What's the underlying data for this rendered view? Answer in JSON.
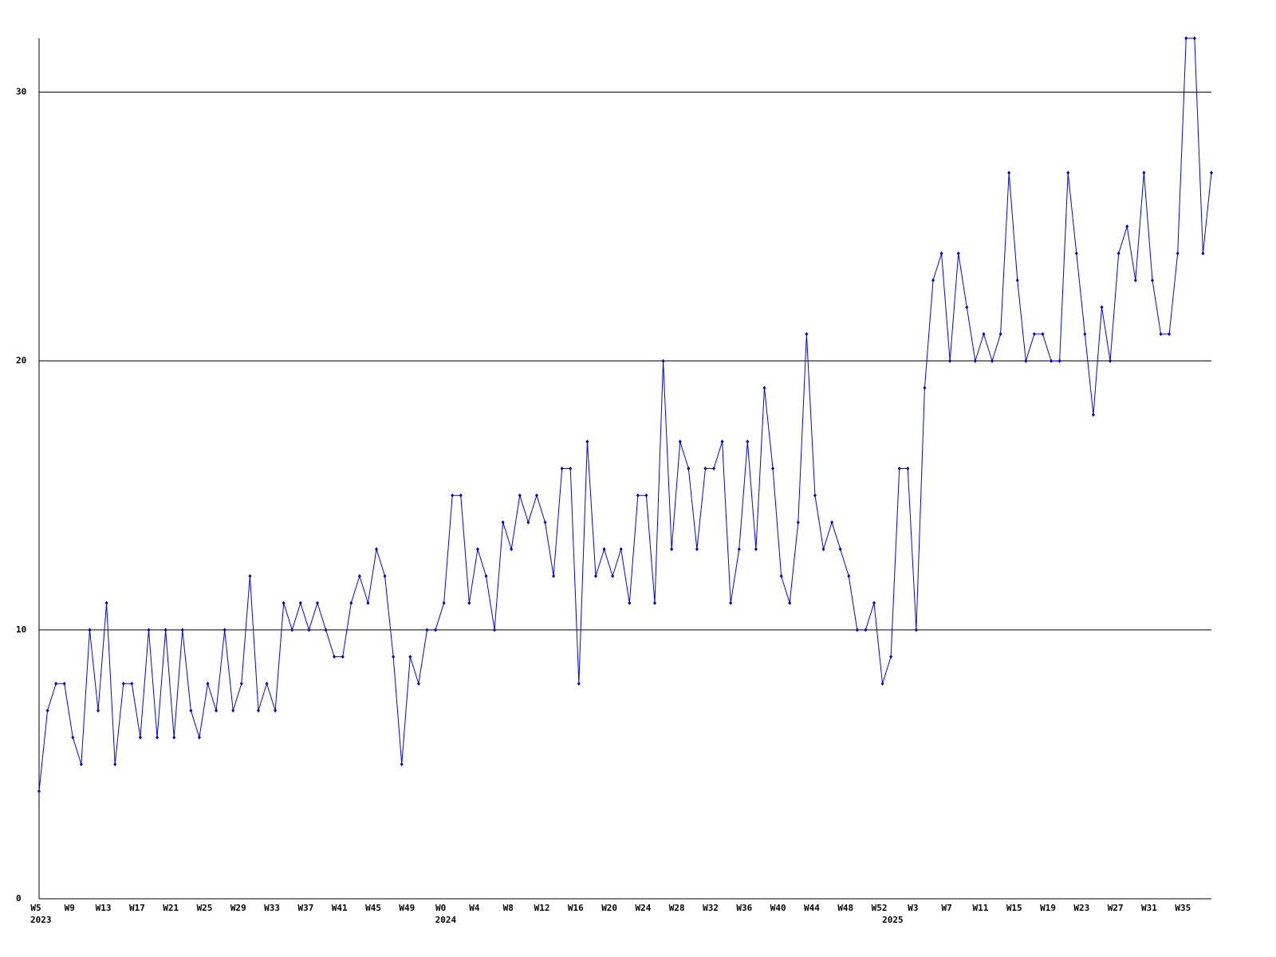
{
  "chart_data": {
    "type": "line",
    "categories": [
      "W5",
      null,
      null,
      null,
      "W9",
      null,
      null,
      null,
      "W13",
      null,
      null,
      null,
      "W17",
      null,
      null,
      null,
      "W21",
      null,
      null,
      null,
      "W25",
      null,
      null,
      null,
      "W29",
      null,
      null,
      null,
      "W33",
      null,
      null,
      null,
      "W37",
      null,
      null,
      null,
      "W41",
      null,
      null,
      null,
      "W45",
      null,
      null,
      null,
      "W49",
      null,
      null,
      null,
      "W0",
      null,
      null,
      null,
      "W4",
      null,
      null,
      null,
      "W8",
      null,
      null,
      null,
      "W12",
      null,
      null,
      null,
      "W16",
      null,
      null,
      null,
      "W20",
      null,
      null,
      null,
      "W24",
      null,
      null,
      null,
      "W28",
      null,
      null,
      null,
      "W32",
      null,
      null,
      null,
      "W36",
      null,
      null,
      null,
      "W40",
      null,
      null,
      null,
      "W44",
      null,
      null,
      null,
      "W48",
      null,
      null,
      null,
      "W52",
      null,
      null,
      null,
      "W3",
      null,
      null,
      null,
      "W7",
      null,
      null,
      null,
      "W11",
      null,
      null,
      null,
      "W15",
      null,
      null,
      null,
      "W19",
      null,
      null,
      null,
      "W23",
      null,
      null,
      null,
      "W27",
      null,
      null,
      null,
      "W31",
      null,
      null,
      null,
      "W35",
      null,
      null,
      null
    ],
    "years": [
      "2023",
      null,
      null,
      null,
      null,
      null,
      null,
      null,
      null,
      null,
      null,
      null,
      null,
      null,
      null,
      null,
      null,
      null,
      null,
      null,
      null,
      null,
      null,
      null,
      null,
      null,
      null,
      null,
      null,
      null,
      null,
      null,
      null,
      null,
      null,
      null,
      null,
      null,
      null,
      null,
      null,
      null,
      null,
      null,
      null,
      null,
      null,
      null,
      "2024",
      null,
      null,
      null,
      null,
      null,
      null,
      null,
      null,
      null,
      null,
      null,
      null,
      null,
      null,
      null,
      null,
      null,
      null,
      null,
      null,
      null,
      null,
      null,
      null,
      null,
      null,
      null,
      null,
      null,
      null,
      null,
      null,
      null,
      null,
      null,
      null,
      null,
      null,
      null,
      null,
      null,
      null,
      null,
      null,
      null,
      null,
      null,
      null,
      null,
      null,
      null,
      null,
      "2025",
      null,
      null,
      null,
      null,
      null,
      null,
      null,
      null,
      null,
      null,
      null,
      null,
      null,
      null,
      null,
      null,
      null,
      null,
      null,
      null,
      null,
      null,
      null,
      null,
      null,
      null,
      null,
      null,
      null,
      null,
      null,
      null,
      null,
      null,
      null,
      null,
      null,
      null
    ],
    "series": [
      {
        "color": "#0000ff",
        "marker_color": "#0000cc",
        "values": [
          4,
          7,
          8,
          8,
          6,
          5,
          10,
          7,
          11,
          5,
          8,
          8,
          6,
          10,
          6,
          10,
          6,
          10,
          7,
          6,
          8,
          7,
          10,
          7,
          8,
          12,
          7,
          8,
          7,
          11,
          10,
          11,
          10,
          11,
          10,
          9,
          9,
          11,
          12,
          11,
          13,
          12,
          9,
          5,
          9,
          8,
          10,
          10,
          11,
          15,
          15,
          11,
          13,
          12,
          10,
          14,
          13,
          15,
          14,
          15,
          14,
          12,
          16,
          16,
          8,
          17,
          12,
          13,
          12,
          13,
          11,
          15,
          15,
          11,
          20,
          13,
          17,
          16,
          13,
          16,
          16,
          17,
          11,
          13,
          17,
          13,
          19,
          16,
          12,
          11,
          14,
          21,
          15,
          13,
          14,
          13,
          12,
          10,
          10,
          11,
          8,
          9,
          16,
          16,
          10,
          19,
          23,
          24,
          20,
          24,
          22,
          20,
          21,
          20,
          21,
          27,
          23,
          20,
          21,
          21,
          20,
          20,
          27,
          24,
          21,
          18,
          22,
          20,
          24,
          25,
          23,
          27,
          23,
          21,
          21,
          24,
          32,
          32,
          24,
          27
        ]
      }
    ],
    "ylim": [
      0,
      32
    ],
    "yticks": [
      0,
      10,
      20,
      30
    ],
    "grid": true
  }
}
